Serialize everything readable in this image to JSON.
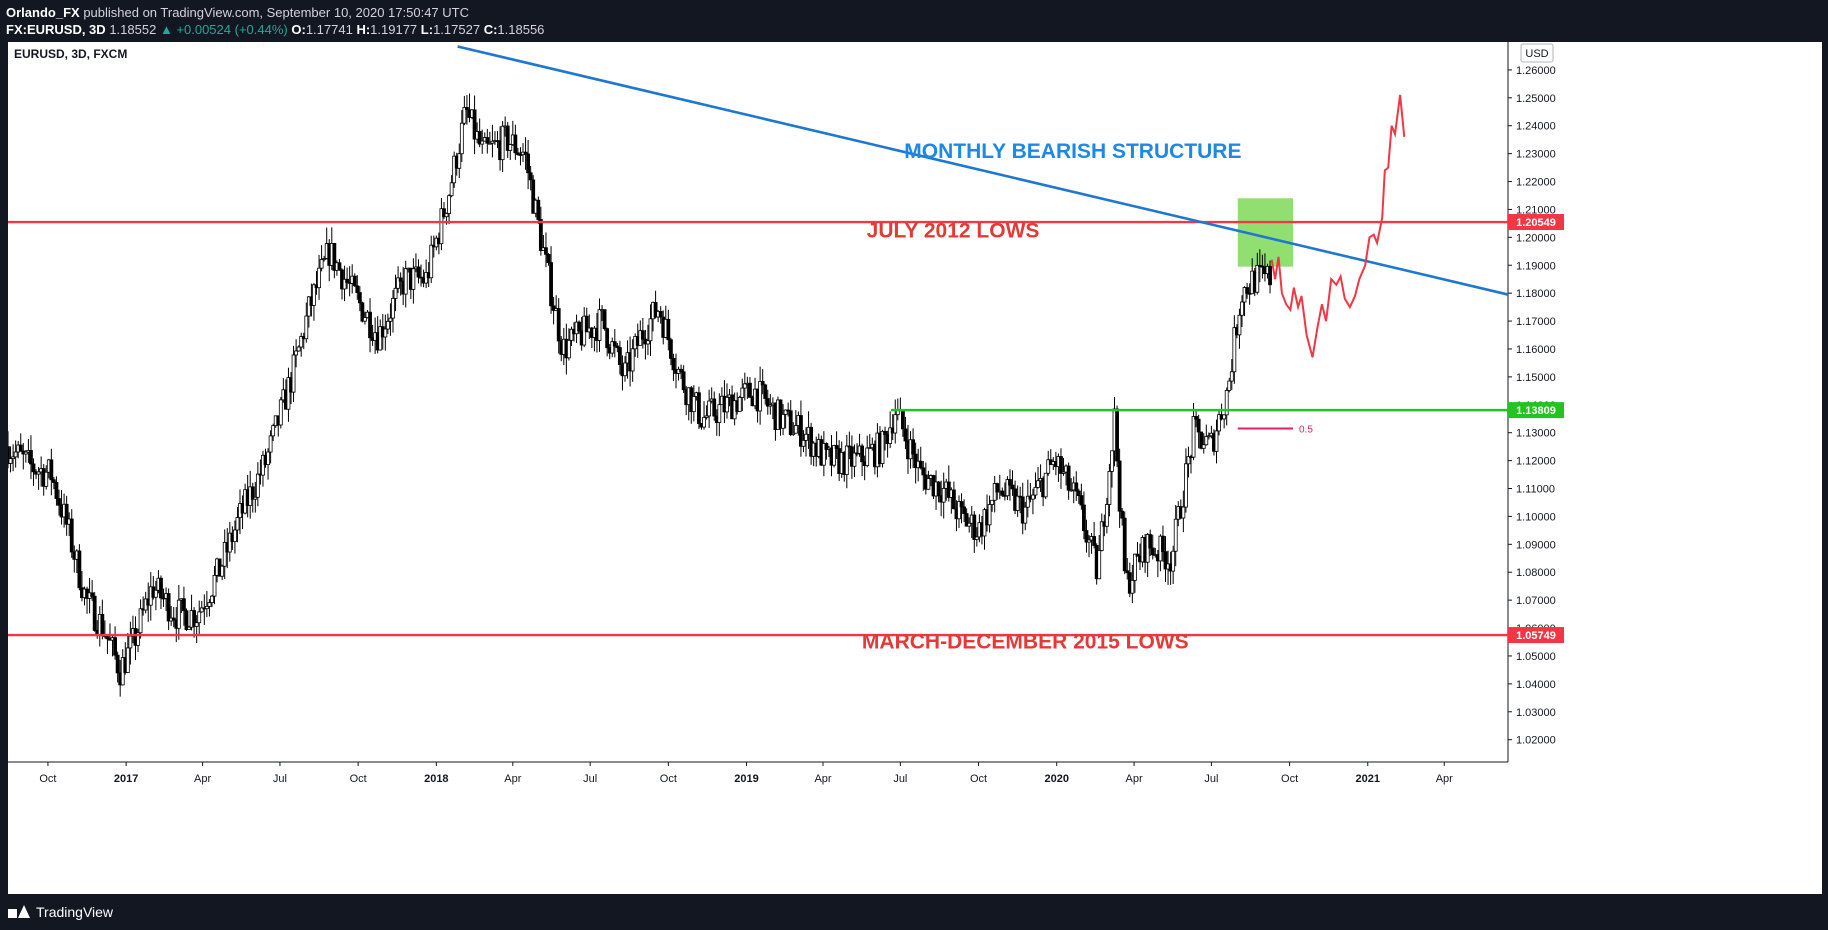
{
  "header": {
    "author": "Orlando_FX",
    "published": "published on TradingView.com, September 10, 2020 17:50:47 UTC",
    "symbol": "FX:EURUSD, 3D",
    "last": "1.18552",
    "change": "▲ +0.00524 (+0.44%)",
    "o_label": "O:",
    "o": "1.17741",
    "h_label": "H:",
    "h": "1.19177",
    "l_label": "L:",
    "l": "1.17527",
    "c_label": "C:",
    "c": "1.18556"
  },
  "footer": {
    "brand": "TradingView"
  },
  "chart_data": {
    "type": "candlestick",
    "title": "EURUSD, 3D, FXCM",
    "currency": "USD",
    "ylim": [
      1.012,
      1.27
    ],
    "y_ticks": [
      1.02,
      1.03,
      1.04,
      1.05,
      1.06,
      1.07,
      1.08,
      1.09,
      1.1,
      1.11,
      1.12,
      1.13,
      1.14,
      1.15,
      1.16,
      1.17,
      1.18,
      1.19,
      1.2,
      1.21,
      1.22,
      1.23,
      1.24,
      1.25,
      1.26
    ],
    "y_tick_labels": [
      "1.02000",
      "1.03000",
      "1.04000",
      "1.05000",
      "1.06000",
      "1.07000",
      "1.08000",
      "1.09000",
      "1.10000",
      "1.11000",
      "1.12000",
      "1.13000",
      "1.14000",
      "1.15000",
      "1.16000",
      "1.17000",
      "1.18000",
      "1.19000",
      "1.20000",
      "1.21000",
      "1.22000",
      "1.23000",
      "1.24000",
      "1.25000",
      "1.26000"
    ],
    "x_range": [
      "2016-08-15",
      "2021-06-15"
    ],
    "x_ticks": [
      {
        "date": "2016-10-01",
        "label": "Oct",
        "bold": false
      },
      {
        "date": "2017-01-01",
        "label": "2017",
        "bold": true
      },
      {
        "date": "2017-04-01",
        "label": "Apr",
        "bold": false
      },
      {
        "date": "2017-07-01",
        "label": "Jul",
        "bold": false
      },
      {
        "date": "2017-10-01",
        "label": "Oct",
        "bold": false
      },
      {
        "date": "2018-01-01",
        "label": "2018",
        "bold": true
      },
      {
        "date": "2018-04-01",
        "label": "Apr",
        "bold": false
      },
      {
        "date": "2018-07-01",
        "label": "Jul",
        "bold": false
      },
      {
        "date": "2018-10-01",
        "label": "Oct",
        "bold": false
      },
      {
        "date": "2019-01-01",
        "label": "2019",
        "bold": true
      },
      {
        "date": "2019-04-01",
        "label": "Apr",
        "bold": false
      },
      {
        "date": "2019-07-01",
        "label": "Jul",
        "bold": false
      },
      {
        "date": "2019-10-01",
        "label": "Oct",
        "bold": false
      },
      {
        "date": "2020-01-01",
        "label": "2020",
        "bold": true
      },
      {
        "date": "2020-04-01",
        "label": "Apr",
        "bold": false
      },
      {
        "date": "2020-07-01",
        "label": "Jul",
        "bold": false
      },
      {
        "date": "2020-10-01",
        "label": "Oct",
        "bold": false
      },
      {
        "date": "2021-01-01",
        "label": "2021",
        "bold": true
      },
      {
        "date": "2021-04-01",
        "label": "Apr",
        "bold": false
      }
    ],
    "price_path": [
      [
        "2016-08-15",
        1.125
      ],
      [
        "2016-09-10",
        1.118
      ],
      [
        "2016-10-05",
        1.115
      ],
      [
        "2016-10-25",
        1.095
      ],
      [
        "2016-11-15",
        1.07
      ],
      [
        "2016-12-05",
        1.06
      ],
      [
        "2016-12-25",
        1.045
      ],
      [
        "2017-01-10",
        1.055
      ],
      [
        "2017-02-01",
        1.075
      ],
      [
        "2017-03-01",
        1.065
      ],
      [
        "2017-03-25",
        1.065
      ],
      [
        "2017-04-20",
        1.08
      ],
      [
        "2017-05-15",
        1.1
      ],
      [
        "2017-06-15",
        1.12
      ],
      [
        "2017-07-15",
        1.15
      ],
      [
        "2017-08-05",
        1.175
      ],
      [
        "2017-08-28",
        1.195
      ],
      [
        "2017-09-25",
        1.18
      ],
      [
        "2017-10-25",
        1.165
      ],
      [
        "2017-11-25",
        1.185
      ],
      [
        "2017-12-20",
        1.185
      ],
      [
        "2018-01-15",
        1.215
      ],
      [
        "2018-02-05",
        1.245
      ],
      [
        "2018-02-25",
        1.23
      ],
      [
        "2018-03-25",
        1.235
      ],
      [
        "2018-04-15",
        1.23
      ],
      [
        "2018-05-10",
        1.19
      ],
      [
        "2018-05-30",
        1.16
      ],
      [
        "2018-06-20",
        1.165
      ],
      [
        "2018-07-15",
        1.17
      ],
      [
        "2018-08-10",
        1.15
      ],
      [
        "2018-08-30",
        1.165
      ],
      [
        "2018-09-20",
        1.175
      ],
      [
        "2018-10-15",
        1.15
      ],
      [
        "2018-11-10",
        1.135
      ],
      [
        "2018-12-10",
        1.14
      ],
      [
        "2019-01-10",
        1.145
      ],
      [
        "2019-02-10",
        1.135
      ],
      [
        "2019-03-10",
        1.13
      ],
      [
        "2019-04-05",
        1.12
      ],
      [
        "2019-05-10",
        1.12
      ],
      [
        "2019-06-10",
        1.125
      ],
      [
        "2019-06-25",
        1.138
      ],
      [
        "2019-07-25",
        1.115
      ],
      [
        "2019-08-20",
        1.11
      ],
      [
        "2019-09-10",
        1.1
      ],
      [
        "2019-10-01",
        1.095
      ],
      [
        "2019-10-25",
        1.11
      ],
      [
        "2019-11-25",
        1.102
      ],
      [
        "2019-12-30",
        1.12
      ],
      [
        "2020-01-25",
        1.105
      ],
      [
        "2020-02-18",
        1.08
      ],
      [
        "2020-03-09",
        1.135
      ],
      [
        "2020-03-22",
        1.075
      ],
      [
        "2020-04-15",
        1.09
      ],
      [
        "2020-05-15",
        1.085
      ],
      [
        "2020-06-10",
        1.13
      ],
      [
        "2020-06-30",
        1.125
      ],
      [
        "2020-07-20",
        1.145
      ],
      [
        "2020-08-05",
        1.18
      ],
      [
        "2020-08-20",
        1.185
      ],
      [
        "2020-09-10",
        1.1855
      ]
    ],
    "projection": [
      [
        "2020-09-10",
        1.192
      ],
      [
        "2020-09-14",
        1.185
      ],
      [
        "2020-09-18",
        1.193
      ],
      [
        "2020-09-22",
        1.18
      ],
      [
        "2020-09-27",
        1.176
      ],
      [
        "2020-10-02",
        1.174
      ],
      [
        "2020-10-06",
        1.182
      ],
      [
        "2020-10-11",
        1.175
      ],
      [
        "2020-10-15",
        1.179
      ],
      [
        "2020-10-21",
        1.165
      ],
      [
        "2020-10-28",
        1.157
      ],
      [
        "2020-11-03",
        1.168
      ],
      [
        "2020-11-08",
        1.176
      ],
      [
        "2020-11-13",
        1.17
      ],
      [
        "2020-11-19",
        1.185
      ],
      [
        "2020-11-25",
        1.183
      ],
      [
        "2020-11-30",
        1.186
      ],
      [
        "2020-12-05",
        1.178
      ],
      [
        "2020-12-11",
        1.175
      ],
      [
        "2020-12-17",
        1.179
      ],
      [
        "2020-12-22",
        1.185
      ],
      [
        "2020-12-29",
        1.19
      ],
      [
        "2021-01-03",
        1.2
      ],
      [
        "2021-01-08",
        1.201
      ],
      [
        "2021-01-12",
        1.198
      ],
      [
        "2021-01-18",
        1.207
      ],
      [
        "2021-01-21",
        1.224
      ],
      [
        "2021-01-25",
        1.225
      ],
      [
        "2021-01-29",
        1.24
      ],
      [
        "2021-02-02",
        1.237
      ],
      [
        "2021-02-08",
        1.251
      ],
      [
        "2021-02-13",
        1.236
      ]
    ],
    "levels": [
      {
        "value": 1.20549,
        "label": "1.20549",
        "color": "#f23645",
        "from": "2016-08-15",
        "to": "2021-06-15"
      },
      {
        "value": 1.13809,
        "label": "1.13809",
        "color": "#22c322",
        "from": "2019-06-20",
        "to": "2021-06-15"
      },
      {
        "value": 1.05749,
        "label": "1.05749",
        "color": "#f23645",
        "from": "2016-08-15",
        "to": "2021-06-15"
      }
    ],
    "fib": {
      "value": 1.1315,
      "label": "0.5",
      "from": "2020-08-01",
      "to": "2020-10-05",
      "color": "#e91e63"
    },
    "trendline": {
      "points": [
        [
          "2018-01-26",
          1.2684
        ],
        [
          "2021-06-15",
          1.1795
        ]
      ],
      "color": "#1e77d1"
    },
    "zone": {
      "from": "2020-08-01",
      "to": "2020-10-05",
      "y1": 1.214,
      "y2": 1.1895,
      "color": "#7ed957"
    },
    "annotations": [
      {
        "text": "MONTHLY BEARISH STRUCTURE",
        "date": "2020-01-20",
        "value": 1.2285,
        "color": "#1e88e5"
      },
      {
        "text": "JULY 2012 LOWS",
        "date": "2019-09-01",
        "value": 1.2,
        "color": "#e53935"
      },
      {
        "text": "MARCH-DECEMBER 2015 LOWS",
        "date": "2019-11-25",
        "value": 1.0527,
        "color": "#e53935"
      }
    ]
  }
}
